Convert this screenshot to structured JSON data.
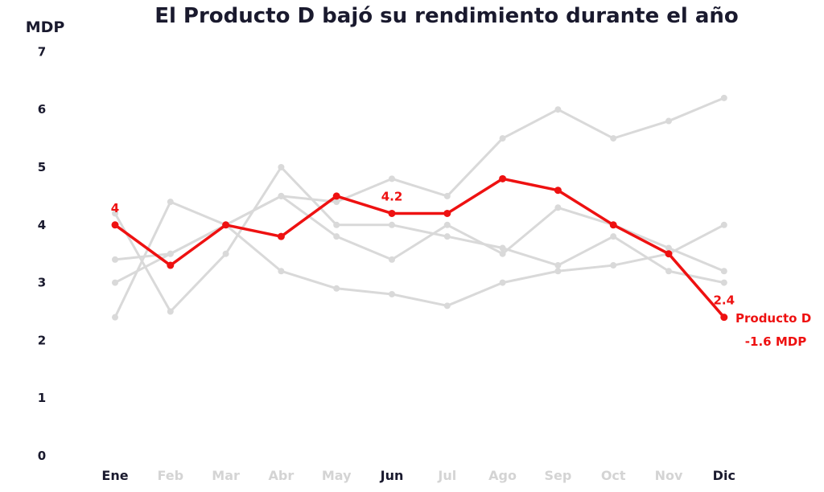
{
  "chart_data": {
    "type": "line",
    "title": "El Producto D bajó su rendimiento durante el año",
    "ylabel": "MDP",
    "xlabel": "",
    "ylim": [
      0,
      7
    ],
    "yticks": [
      "0",
      "1",
      "2",
      "3",
      "4",
      "5",
      "6",
      "7"
    ],
    "categories": [
      "Ene",
      "Feb",
      "Mar",
      "Abr",
      "May",
      "Jun",
      "Jul",
      "Ago",
      "Sep",
      "Oct",
      "Nov",
      "Dic"
    ],
    "highlighted_categories": [
      "Ene",
      "Jun",
      "Dic"
    ],
    "grid": false,
    "series": [
      {
        "highlight": false,
        "values": [
          2.4,
          4.4,
          4.0,
          3.2,
          2.9,
          2.8,
          2.6,
          3.0,
          3.2,
          3.3,
          3.5,
          4.0
        ]
      },
      {
        "highlight": false,
        "values": [
          3.4,
          3.5,
          4.0,
          4.5,
          4.4,
          4.8,
          4.5,
          5.5,
          6.0,
          5.5,
          5.8,
          6.2
        ]
      },
      {
        "highlight": false,
        "values": [
          3.0,
          3.5,
          4.0,
          4.5,
          3.8,
          3.4,
          4.0,
          3.5,
          4.3,
          4.0,
          3.6,
          3.2
        ]
      },
      {
        "highlight": false,
        "values": [
          4.2,
          2.5,
          3.5,
          5.0,
          4.0,
          4.0,
          3.8,
          3.6,
          3.3,
          3.8,
          3.2,
          3.0
        ]
      },
      {
        "name": "Producto D",
        "highlight": true,
        "values": [
          4.0,
          3.3,
          4.0,
          3.8,
          4.5,
          4.2,
          4.2,
          4.8,
          4.6,
          4.0,
          3.5,
          2.4
        ]
      }
    ],
    "data_labels": [
      {
        "category": "Ene",
        "text": "4"
      },
      {
        "category": "Jun",
        "text": "4.2"
      },
      {
        "category": "Dic",
        "text": "2.4"
      }
    ],
    "annotation": {
      "series_label": "Producto D",
      "change_label": "-1.6 MDP"
    },
    "colors": {
      "highlight": "#ee1111",
      "context": "#d9d9d9",
      "text": "#1a1a2e",
      "muted_tick": "#d4d4d4"
    }
  }
}
